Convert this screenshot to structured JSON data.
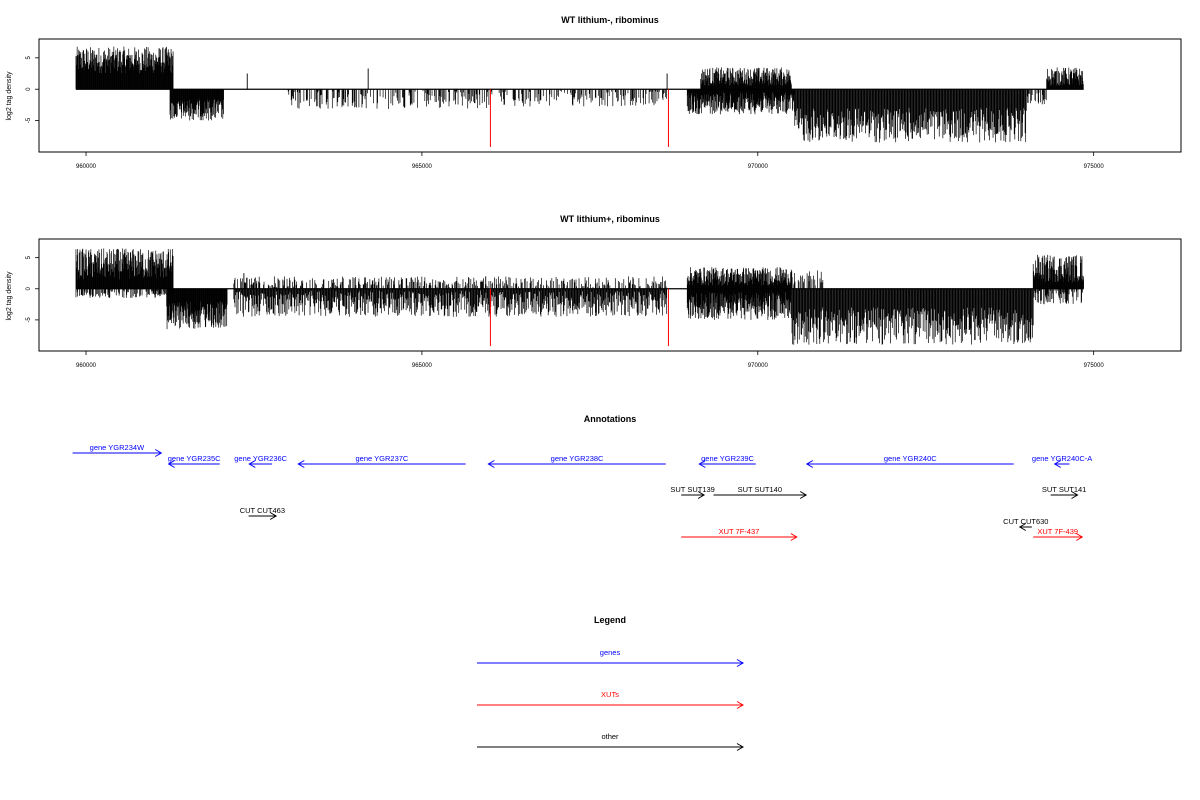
{
  "chart_data": [
    {
      "type": "bar",
      "title": "WT lithium-, ribominus",
      "ylabel": "log2 tag density",
      "xlim": [
        959300,
        976300
      ],
      "ylim": [
        -10,
        8
      ],
      "xticks": [
        "960000",
        "965000",
        "970000",
        "975000"
      ],
      "yticks": [
        "-5",
        "0",
        "5"
      ],
      "series": [
        {
          "name": "",
          "values_description": "",
          "segments": [
            {
              "x0": 959850,
              "x1": 961300,
              "sign": 1,
              "min": 2.5,
              "max": 6.8
            },
            {
              "x0": 961250,
              "x1": 962050,
              "sign": -1,
              "min": 1.5,
              "max": 5.0
            },
            {
              "x0": 963000,
              "x1": 966050,
              "sign": -1,
              "min": 0.3,
              "max": 3.2
            },
            {
              "x0": 966150,
              "x1": 968650,
              "sign": -1,
              "min": 0.3,
              "max": 2.8
            },
            {
              "x0": 968950,
              "x1": 970550,
              "sign": -1,
              "min": 0.5,
              "max": 4.0
            },
            {
              "x0": 969150,
              "x1": 970500,
              "sign": 1,
              "min": 0.5,
              "max": 3.5
            },
            {
              "x0": 970550,
              "x1": 974000,
              "sign": -1,
              "min": 3.0,
              "max": 8.5
            },
            {
              "x0": 974000,
              "x1": 974300,
              "sign": -1,
              "min": 0.5,
              "max": 2.5
            },
            {
              "x0": 974300,
              "x1": 974850,
              "sign": 1,
              "min": 0.5,
              "max": 3.5
            }
          ]
        }
      ],
      "singles": [
        {
          "x": 962400,
          "y": 2.5
        },
        {
          "x": 964200,
          "y": 3.3
        },
        {
          "x": 968650,
          "y": 2.5
        }
      ],
      "red_lines": [
        {
          "x": 966020,
          "y": -9.2
        },
        {
          "x": 968670,
          "y": -9.2
        }
      ]
    },
    {
      "type": "bar",
      "title": "WT lithium+, ribominus",
      "ylabel": "log2 tag density",
      "xlim": [
        959300,
        976300
      ],
      "ylim": [
        -10,
        8
      ],
      "xticks": [
        "960000",
        "965000",
        "970000",
        "975000"
      ],
      "yticks": [
        "-5",
        "0",
        "5"
      ],
      "series": [
        {
          "name": "",
          "segments": [
            {
              "x0": 959850,
              "x1": 961300,
              "sign": 1,
              "min": 1.5,
              "max": 6.5
            },
            {
              "x0": 959850,
              "x1": 961300,
              "sign": -1,
              "min": 0.3,
              "max": 1.5
            },
            {
              "x0": 961200,
              "x1": 962100,
              "sign": -1,
              "min": 2.0,
              "max": 6.5
            },
            {
              "x0": 962200,
              "x1": 968650,
              "sign": -1,
              "min": 0.3,
              "max": 4.5
            },
            {
              "x0": 962200,
              "x1": 968650,
              "sign": 1,
              "min": 0.3,
              "max": 2.0
            },
            {
              "x0": 968950,
              "x1": 970500,
              "sign": -1,
              "min": 0.5,
              "max": 5.0
            },
            {
              "x0": 968950,
              "x1": 970500,
              "sign": 1,
              "min": 0.5,
              "max": 3.5
            },
            {
              "x0": 970500,
              "x1": 974100,
              "sign": -1,
              "min": 3.0,
              "max": 9.0
            },
            {
              "x0": 970500,
              "x1": 971000,
              "sign": 1,
              "min": 0.5,
              "max": 3.0
            },
            {
              "x0": 974100,
              "x1": 974850,
              "sign": 1,
              "min": 1.0,
              "max": 5.5
            },
            {
              "x0": 974100,
              "x1": 974850,
              "sign": -1,
              "min": 0.3,
              "max": 2.5
            }
          ]
        }
      ],
      "singles": [
        {
          "x": 962350,
          "y": 2.5
        },
        {
          "x": 965950,
          "y": 2.0
        }
      ],
      "red_lines": [
        {
          "x": 966020,
          "y": -9.2
        },
        {
          "x": 968670,
          "y": -9.2
        }
      ]
    }
  ],
  "annotations": {
    "title": "Annotations",
    "features": [
      {
        "label": "gene YGR234W",
        "start": 959800,
        "end": 961120,
        "dir": "right",
        "row": 0,
        "color": "#0000ff"
      },
      {
        "label": "gene YGR235C",
        "start": 961230,
        "end": 961990,
        "dir": "left",
        "row": 1,
        "color": "#0000ff"
      },
      {
        "label": "gene YGR236C",
        "start": 962430,
        "end": 962770,
        "dir": "left",
        "row": 1,
        "color": "#0000ff"
      },
      {
        "label": "gene YGR237C",
        "start": 963160,
        "end": 965650,
        "dir": "left",
        "row": 1,
        "color": "#0000ff"
      },
      {
        "label": "gene YGR238C",
        "start": 965990,
        "end": 968630,
        "dir": "left",
        "row": 1,
        "color": "#0000ff"
      },
      {
        "label": "gene YGR239C",
        "start": 969130,
        "end": 969970,
        "dir": "left",
        "row": 1,
        "color": "#0000ff"
      },
      {
        "label": "gene YGR240C",
        "start": 970730,
        "end": 973810,
        "dir": "left",
        "row": 1,
        "color": "#0000ff"
      },
      {
        "label": "gene YGR240C-A",
        "start": 974420,
        "end": 974640,
        "dir": "left",
        "row": 1,
        "color": "#0000ff"
      },
      {
        "label": "SUT SUT139",
        "start": 968860,
        "end": 969200,
        "dir": "right",
        "row": 2,
        "color": "#000000"
      },
      {
        "label": "SUT SUT140",
        "start": 969340,
        "end": 970720,
        "dir": "right",
        "row": 2,
        "color": "#000000"
      },
      {
        "label": "SUT SUT141",
        "start": 974360,
        "end": 974760,
        "dir": "right",
        "row": 2,
        "color": "#000000"
      },
      {
        "label": "CUT CUT463",
        "start": 962420,
        "end": 962830,
        "dir": "right",
        "row": 3,
        "color": "#000000"
      },
      {
        "label": "CUT CUT630",
        "start": 973900,
        "end": 974080,
        "dir": "left",
        "row": 4,
        "color": "#000000"
      },
      {
        "label": "XUT 7F-437",
        "start": 968860,
        "end": 970580,
        "dir": "right",
        "row": 5,
        "color": "#ff0000"
      },
      {
        "label": "XUT 7F-439",
        "start": 974100,
        "end": 974830,
        "dir": "right",
        "row": 5,
        "color": "#ff0000"
      }
    ]
  },
  "legend": {
    "title": "Legend",
    "items": [
      {
        "label": "genes",
        "color": "#0000ff"
      },
      {
        "label": "XUTs",
        "color": "#ff0000"
      },
      {
        "label": "other",
        "color": "#000000"
      }
    ]
  }
}
